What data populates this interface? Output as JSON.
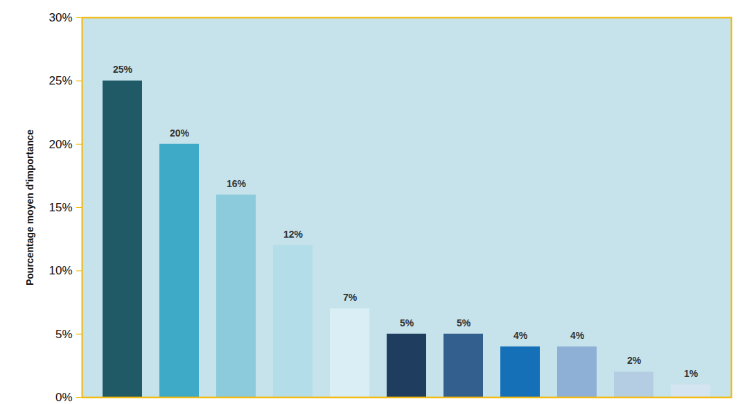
{
  "chart_data": {
    "type": "bar",
    "y_label": "Pourcentage moyen d'importance",
    "categories": [
      null,
      null,
      null,
      null,
      null,
      null,
      null,
      null,
      null,
      null,
      null
    ],
    "values": [
      25,
      20,
      16,
      12,
      7,
      5,
      5,
      4,
      4,
      2,
      1
    ],
    "value_labels": [
      "25%",
      "20%",
      "16%",
      "12%",
      "7%",
      "5%",
      "5%",
      "4%",
      "4%",
      "2%",
      "1%"
    ],
    "colors": [
      "#1f5a66",
      "#3fa9c8",
      "#8ccbdc",
      "#b3dde9",
      "#daeef5",
      "#1f3d5e",
      "#335f8f",
      "#1570b8",
      "#8fb0d6",
      "#b5cde3",
      "#d5e4f1"
    ],
    "ylim": [
      0,
      30
    ],
    "yticks": [
      {
        "value": 0,
        "label": "0%"
      },
      {
        "value": 5,
        "label": "5%"
      },
      {
        "value": 10,
        "label": "10%"
      },
      {
        "value": 15,
        "label": "15%"
      },
      {
        "value": 20,
        "label": "20%"
      },
      {
        "value": 25,
        "label": "25%"
      },
      {
        "value": 30,
        "label": "30%"
      }
    ],
    "data_labels": true,
    "grid": false,
    "tick_labels": "y"
  }
}
